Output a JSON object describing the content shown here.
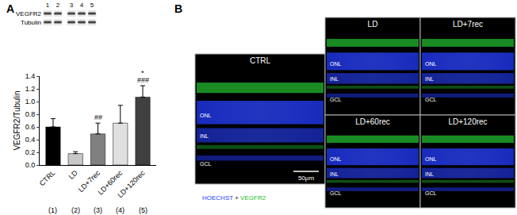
{
  "panel_labels": [
    "A",
    "B"
  ],
  "chart_data": {
    "type": "bar",
    "categories": [
      "CTRL",
      "LD",
      "LD+7rec",
      "LD+60rec",
      "LD+120rec"
    ],
    "values": [
      0.6,
      0.18,
      0.49,
      0.66,
      1.07
    ],
    "errors": [
      0.13,
      0.03,
      0.17,
      0.28,
      0.18
    ],
    "colors": [
      "#000000",
      "#c8c8c8",
      "#808080",
      "#e0e0e0",
      "#404040"
    ],
    "y_label": "VEGFR2/Tubulin",
    "ylim": [
      0,
      1.4
    ],
    "yticks": [
      {
        "value": 0,
        "label": "0.0"
      },
      0.2,
      0.4,
      0.6,
      0.8,
      {
        "value": 1,
        "label": "1.0"
      },
      1.2,
      1.4
    ],
    "grid": false,
    "annotations": [
      {
        "category": "LD+7rec",
        "text": "##"
      },
      {
        "category": "LD+120rec",
        "text": "###"
      },
      {
        "category": "LD+120rec",
        "text": "*"
      }
    ],
    "category_numbers": [
      "(1)",
      "(2)",
      "(3)",
      "(4)",
      "(5)"
    ]
  },
  "blot": {
    "lanes": [
      "1",
      "2",
      "3",
      "4",
      "5"
    ],
    "rows": [
      "VEGFR2",
      "Tubulin"
    ]
  },
  "micrographs": {
    "panels": [
      {
        "title": "CTRL",
        "layers": [
          "ONL",
          "INL",
          "GCL"
        ]
      },
      {
        "title": "LD",
        "layers": [
          "ONL",
          "INL",
          "GCL"
        ]
      },
      {
        "title": "LD+7rec",
        "layers": [
          "ONL",
          "INL",
          "GCL"
        ]
      },
      {
        "title": "LD+60rec",
        "layers": [
          "ONL",
          "INL",
          "GCL"
        ]
      },
      {
        "title": "LD+120rec",
        "layers": [
          "ONL",
          "INL",
          "GCL"
        ]
      }
    ],
    "scale_bar": "50μm",
    "stain_legend": [
      {
        "text": "HOECHST",
        "color": "#2040ff"
      },
      {
        "text": "+",
        "color": "#000000"
      },
      {
        "text": "VEGFR2",
        "color": "#22bb22"
      }
    ]
  }
}
